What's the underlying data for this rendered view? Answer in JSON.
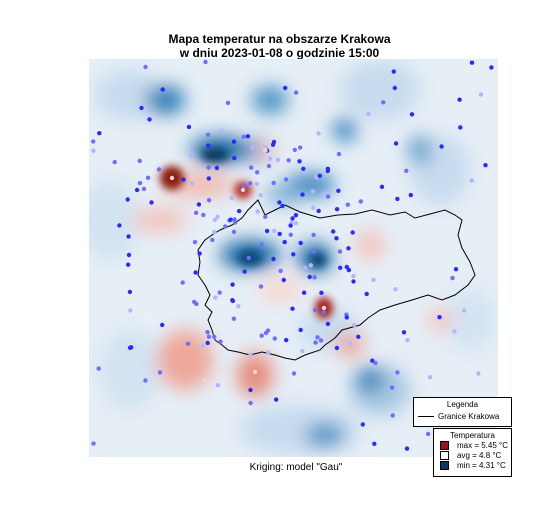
{
  "title_line1": "Mapa temperatur na obszarze Krakowa",
  "title_line2": "w dniu 2023-01-08 o godzinie 15:00",
  "caption": "Kriging: model \"Gau\"",
  "legend1": {
    "title": "Legenda",
    "item": "Granice Krakowa"
  },
  "legend2": {
    "title": "Temperatura",
    "items": [
      {
        "label": "max =  5.45 °C",
        "color": "#8b1a10"
      },
      {
        "label": "avg =  4.8 °C",
        "color": "#ffffff"
      },
      {
        "label": "min =  4.31 °C",
        "color": "#0b3a63"
      }
    ]
  },
  "colors": {
    "background": "#e6eef6",
    "hot": "#b2182b",
    "cold": "#2166ac",
    "stations": "#3b3bff"
  }
}
